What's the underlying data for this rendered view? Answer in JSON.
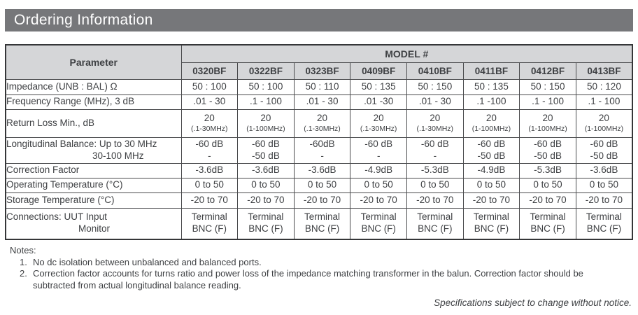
{
  "banner": {
    "title": "Ordering Information"
  },
  "table": {
    "parameter_header": "Parameter",
    "model_group_header": "MODEL #",
    "models": [
      "0320BF",
      "0322BF",
      "0323BF",
      "0409BF",
      "0410BF",
      "0411BF",
      "0412BF",
      "0413BF"
    ],
    "rows": [
      {
        "param_lines": [
          "Impedance (UNB : BAL) Ω"
        ],
        "cells": [
          [
            "50 : 100"
          ],
          [
            "50 : 100"
          ],
          [
            "50 : 110"
          ],
          [
            "50 : 135"
          ],
          [
            "50 : 150"
          ],
          [
            "50 : 135"
          ],
          [
            "50 : 150"
          ],
          [
            "50 : 120"
          ]
        ]
      },
      {
        "param_lines": [
          "Frequency Range (MHz), 3 dB"
        ],
        "cells": [
          [
            ".01 - 30"
          ],
          [
            ".1 - 100"
          ],
          [
            ".01 - 30"
          ],
          [
            ".01 -30"
          ],
          [
            ".01 - 30"
          ],
          [
            ".1 -100"
          ],
          [
            ".1 - 100"
          ],
          [
            ".1 - 100"
          ]
        ]
      },
      {
        "param_lines": [
          "Return Loss Min., dB"
        ],
        "cells": [
          [
            "20",
            "(.1-30MHz)"
          ],
          [
            "20",
            "(1-100MHz)"
          ],
          [
            "20",
            "(.1-30MHz)"
          ],
          [
            "20",
            "(.1-30MHz)"
          ],
          [
            "20",
            "(.1-30MHz)"
          ],
          [
            "20",
            "(1-100MHz)"
          ],
          [
            "20",
            "(1-100MHz)"
          ],
          [
            "20",
            "(1-100MHz)"
          ]
        ]
      },
      {
        "param_lines": [
          "Longitudinal Balance: Up to 30 MHz",
          "30-100 MHz"
        ],
        "cells": [
          [
            "-60 dB",
            "-"
          ],
          [
            "-60 dB",
            "-50 dB"
          ],
          [
            "-60dB",
            "-"
          ],
          [
            "-60 dB",
            "-"
          ],
          [
            "-60 dB",
            "-"
          ],
          [
            "-60 dB",
            "-50 dB"
          ],
          [
            "-60 dB",
            "-50 dB"
          ],
          [
            "-60 dB",
            "-50 dB"
          ]
        ]
      },
      {
        "param_lines": [
          "Correction Factor"
        ],
        "cells": [
          [
            "-3.6dB"
          ],
          [
            "-3.6dB"
          ],
          [
            "-3.6dB"
          ],
          [
            "-4.9dB"
          ],
          [
            "-5.3dB"
          ],
          [
            "-4.9dB"
          ],
          [
            "-5.3dB"
          ],
          [
            "-3.6dB"
          ]
        ]
      },
      {
        "param_lines": [
          "Operating Temperature (°C)"
        ],
        "cells": [
          [
            "0 to 50"
          ],
          [
            "0 to 50"
          ],
          [
            "0 to 50"
          ],
          [
            "0 to 50"
          ],
          [
            "0 to 50"
          ],
          [
            "0 to 50"
          ],
          [
            "0 to 50"
          ],
          [
            "0 to 50"
          ]
        ]
      },
      {
        "param_lines": [
          "Storage Temperature (°C)"
        ],
        "cells": [
          [
            "-20 to 70"
          ],
          [
            "-20 to 70"
          ],
          [
            "-20 to 70"
          ],
          [
            "-20 to 70"
          ],
          [
            "-20 to 70"
          ],
          [
            "-20 to 70"
          ],
          [
            "-20 to 70"
          ],
          [
            "-20 to 70"
          ]
        ]
      },
      {
        "param_lines": [
          "Connections:  UUT Input",
          "Monitor"
        ],
        "cells": [
          [
            "Terminal",
            "BNC (F)"
          ],
          [
            "Terminal",
            "BNC (F)"
          ],
          [
            "Terminal",
            "BNC (F)"
          ],
          [
            "Terminal",
            "BNC (F)"
          ],
          [
            "Terminal",
            "BNC (F)"
          ],
          [
            "Terminal",
            "BNC (F)"
          ],
          [
            "Terminal",
            "BNC (F)"
          ],
          [
            "Terminal",
            "BNC (F)"
          ]
        ]
      }
    ]
  },
  "notes": {
    "heading": "Notes:",
    "items": [
      "No dc isolation between unbalanced and balanced ports.",
      "Correction factor accounts for turns ratio and power loss of the impedance matching transformer in the balun. Correction factor should be subtracted from actual longitudinal balance reading."
    ]
  },
  "footer": {
    "disclaimer": "Specifications subject to change without notice."
  },
  "colors": {
    "banner_bg": "#76777A",
    "header_bg": "#D5D6D8",
    "border": "#4A4B4D",
    "text": "#3E4043"
  }
}
